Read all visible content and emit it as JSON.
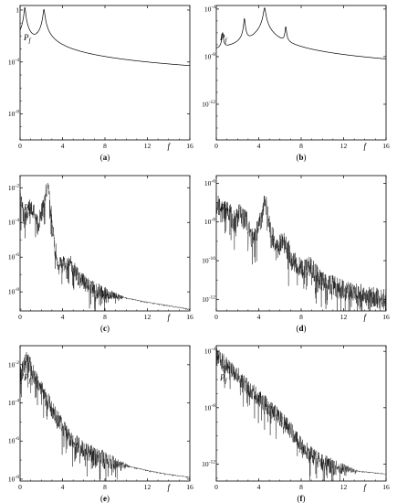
{
  "chart_data": [
    {
      "type": "line",
      "panel": "a",
      "caption": {
        "open": "(",
        "letter": "a",
        "close": ")"
      },
      "ylabel": {
        "main": "P",
        "sub": "f"
      },
      "xlabel": "f",
      "yscale": "log",
      "xlim": [
        0,
        16
      ],
      "ylim_exp": [
        -10,
        0.35
      ],
      "xticks": [
        "0",
        "4",
        "8",
        "12",
        "16"
      ],
      "yticks": [
        {
          "base": "1",
          "exp": "",
          "value": 0
        },
        {
          "base": "10",
          "exp": "-4",
          "value": -4
        },
        {
          "base": "10",
          "exp": "-8",
          "value": -8
        }
      ],
      "series": [
        {
          "baseline": [
            [
              0.05,
              -6.2
            ],
            [
              0.3,
              -7.3
            ],
            [
              1,
              -7.9
            ],
            [
              2,
              -8.3
            ],
            [
              4,
              -8.8
            ],
            [
              8,
              -9.4
            ],
            [
              12,
              -9.8
            ],
            [
              16,
              -10.1
            ]
          ],
          "noise": 0,
          "peaks": [
            {
              "f": 0.45,
              "top": 0.2,
              "w": 0.06
            },
            {
              "f": 1.6,
              "top": -2.9,
              "w": 0.03
            },
            {
              "f": 2.25,
              "top": 0.05,
              "w": 0.07
            },
            {
              "f": 3.45,
              "top": -5.2,
              "w": 0.02
            },
            {
              "f": 4.1,
              "top": -4.2,
              "w": 0.03
            },
            {
              "f": 5.5,
              "top": -6.5,
              "w": 0.02
            },
            {
              "f": 6.35,
              "top": -5.8,
              "w": 0.02
            },
            {
              "f": 8.25,
              "top": -7.3,
              "w": 0.015
            },
            {
              "f": 10.3,
              "top": -8.9,
              "w": 0.01
            }
          ]
        }
      ]
    },
    {
      "type": "line",
      "panel": "b",
      "caption": {
        "open": "(",
        "letter": "b",
        "close": ")"
      },
      "ylabel": {
        "main": "P",
        "sub": "f"
      },
      "xlabel": "f",
      "yscale": "log",
      "xlim": [
        0,
        16
      ],
      "ylim_exp": [
        -15,
        -3.7
      ],
      "xticks": [
        "0",
        "4",
        "8",
        "12",
        "16"
      ],
      "yticks": [
        {
          "base": "10",
          "exp": "-4",
          "value": -4
        },
        {
          "base": "10",
          "exp": "-8",
          "value": -8
        },
        {
          "base": "10",
          "exp": "-12",
          "value": -12
        }
      ],
      "series": [
        {
          "baseline": [
            [
              0.05,
              -9.0
            ],
            [
              0.6,
              -10.4
            ],
            [
              1.2,
              -11.8
            ],
            [
              1.6,
              -11.4
            ],
            [
              2.0,
              -12.0
            ],
            [
              2.6,
              -11.2
            ],
            [
              3.0,
              -13.2
            ],
            [
              3.5,
              -11.4
            ],
            [
              4.55,
              -7.5
            ],
            [
              5.6,
              -11.8
            ],
            [
              5.9,
              -12.9
            ],
            [
              6.4,
              -12.0
            ],
            [
              7.5,
              -13.0
            ],
            [
              8.4,
              -12.6
            ],
            [
              9.2,
              -13.2
            ],
            [
              10.5,
              -13.4
            ],
            [
              12,
              -13.7
            ],
            [
              14,
              -13.9
            ],
            [
              16,
              -14.1
            ]
          ],
          "noise": 0,
          "peaks": [
            {
              "f": 0.6,
              "top": -6.0,
              "w": 0.05
            },
            {
              "f": 1.3,
              "top": -8.0,
              "w": 0.02
            },
            {
              "f": 2.65,
              "top": -4.8,
              "w": 0.05
            },
            {
              "f": 3.7,
              "top": -7.6,
              "w": 0.03
            },
            {
              "f": 4.55,
              "top": -3.9,
              "w": 0.08
            },
            {
              "f": 5.6,
              "top": -7.8,
              "w": 0.03
            },
            {
              "f": 6.55,
              "top": -5.5,
              "w": 0.05
            },
            {
              "f": 8.6,
              "top": -9.0,
              "w": 0.02
            },
            {
              "f": 10.7,
              "top": -9.8,
              "w": 0.015
            },
            {
              "f": 12.55,
              "top": -11.3,
              "w": 0.01
            },
            {
              "f": 14.2,
              "top": -12.8,
              "w": 0.01
            }
          ]
        }
      ]
    },
    {
      "type": "line",
      "panel": "c",
      "caption": {
        "open": "(",
        "letter": "c",
        "close": ")"
      },
      "ylabel": {
        "main": "P",
        "sub": "f"
      },
      "xlabel": "f",
      "yscale": "log",
      "xlim": [
        0,
        16
      ],
      "ylim_exp": [
        -9.1,
        -1.3
      ],
      "xticks": [
        "0",
        "4",
        "8",
        "12",
        "16"
      ],
      "yticks": [
        {
          "base": "10",
          "exp": "-2",
          "value": -2
        },
        {
          "base": "10",
          "exp": "-4",
          "value": -4
        },
        {
          "base": "10",
          "exp": "-6",
          "value": -6
        },
        {
          "base": "10",
          "exp": "-8",
          "value": -8
        }
      ],
      "series": [
        {
          "baseline": [
            [
              0,
              -2.4
            ],
            [
              0.4,
              -3.9
            ],
            [
              0.9,
              -3.1
            ],
            [
              1.3,
              -3.3
            ],
            [
              1.7,
              -4.1
            ],
            [
              2.3,
              -2.8
            ],
            [
              2.6,
              -1.7
            ],
            [
              3.0,
              -3.9
            ],
            [
              3.5,
              -6.3
            ],
            [
              4.3,
              -6.5
            ],
            [
              4.8,
              -6.4
            ],
            [
              5.6,
              -7.3
            ],
            [
              6.4,
              -7.6
            ],
            [
              7.0,
              -7.9
            ],
            [
              8,
              -8.1
            ],
            [
              10,
              -8.35
            ],
            [
              12,
              -8.6
            ],
            [
              14,
              -8.8
            ],
            [
              16,
              -9.0
            ]
          ],
          "noise": 0.9,
          "noiseUntil": 7.5,
          "peaks": []
        }
      ]
    },
    {
      "type": "line",
      "panel": "d",
      "caption": {
        "open": "(",
        "letter": "d",
        "close": ")"
      },
      "ylabel": {
        "main": "P",
        "sub": "f"
      },
      "xlabel": "f",
      "yscale": "log",
      "xlim": [
        0,
        16
      ],
      "ylim_exp": [
        -12.6,
        -5.6
      ],
      "xticks": [
        "0",
        "4",
        "8",
        "12",
        "16"
      ],
      "yticks": [
        {
          "base": "10",
          "exp": "-6",
          "value": -6
        },
        {
          "base": "10",
          "exp": "-8",
          "value": -8
        },
        {
          "base": "10",
          "exp": "-10",
          "value": -10
        },
        {
          "base": "10",
          "exp": "-12",
          "value": -12
        }
      ],
      "series": [
        {
          "baseline": [
            [
              0,
              -7.0
            ],
            [
              0.6,
              -7.5
            ],
            [
              1.1,
              -7.3
            ],
            [
              1.6,
              -8.0
            ],
            [
              2.2,
              -7.6
            ],
            [
              2.8,
              -7.9
            ],
            [
              3.4,
              -8.9
            ],
            [
              4.0,
              -8.3
            ],
            [
              4.6,
              -6.9
            ],
            [
              5.1,
              -8.4
            ],
            [
              5.7,
              -9.4
            ],
            [
              6.4,
              -8.9
            ],
            [
              7.2,
              -10.0
            ],
            [
              8.0,
              -10.4
            ],
            [
              8.8,
              -10.3
            ],
            [
              10,
              -11.1
            ],
            [
              12,
              -11.5
            ],
            [
              14,
              -11.8
            ],
            [
              16,
              -12.0
            ]
          ],
          "noise": 1.0,
          "noiseUntil": 16,
          "peaks": []
        }
      ]
    },
    {
      "type": "line",
      "panel": "e",
      "caption": {
        "open": "(",
        "letter": "e",
        "close": ")"
      },
      "ylabel": {
        "main": "P",
        "sub": "f"
      },
      "xlabel": "f",
      "yscale": "log",
      "xlim": [
        0,
        16
      ],
      "ylim_exp": [
        -8.1,
        -1.0
      ],
      "xticks": [
        "0",
        "4",
        "8",
        "12",
        "16"
      ],
      "yticks": [
        {
          "base": "10",
          "exp": "-2",
          "value": -2
        },
        {
          "base": "10",
          "exp": "-4",
          "value": -4
        },
        {
          "base": "10",
          "exp": "-6",
          "value": -6
        },
        {
          "base": "10",
          "exp": "-8",
          "value": -8
        }
      ],
      "series": [
        {
          "baseline": [
            [
              0,
              -2.6
            ],
            [
              0.7,
              -1.6
            ],
            [
              1.2,
              -2.4
            ],
            [
              2.0,
              -3.3
            ],
            [
              3.0,
              -4.3
            ],
            [
              4.0,
              -5.3
            ],
            [
              5.0,
              -6.0
            ],
            [
              6.0,
              -6.5
            ],
            [
              7.0,
              -6.8
            ],
            [
              8,
              -7.0
            ],
            [
              10,
              -7.3
            ],
            [
              12,
              -7.55
            ],
            [
              14,
              -7.75
            ],
            [
              16,
              -7.9
            ]
          ],
          "noise": 0.9,
          "noiseUntil": 8,
          "peaks": []
        }
      ]
    },
    {
      "type": "line",
      "panel": "f",
      "caption": {
        "open": "(",
        "letter": "f",
        "close": ")"
      },
      "ylabel": {
        "main": "P",
        "sub": "f"
      },
      "xlabel": "f",
      "yscale": "log",
      "xlim": [
        0,
        16
      ],
      "ylim_exp": [
        -13.2,
        -3.6
      ],
      "xticks": [
        "0",
        "4",
        "8",
        "12",
        "16"
      ],
      "yticks": [
        {
          "base": "10",
          "exp": "-4",
          "value": -4
        },
        {
          "base": "10",
          "exp": "-8",
          "value": -8
        },
        {
          "base": "10",
          "exp": "-12",
          "value": -12
        }
      ],
      "series": [
        {
          "baseline": [
            [
              0,
              -4.3
            ],
            [
              1,
              -5.0
            ],
            [
              2,
              -5.7
            ],
            [
              3,
              -6.6
            ],
            [
              4,
              -7.3
            ],
            [
              5,
              -8.0
            ],
            [
              6,
              -8.7
            ],
            [
              7,
              -9.6
            ],
            [
              8,
              -10.7
            ],
            [
              9,
              -11.4
            ],
            [
              10,
              -11.9
            ],
            [
              11,
              -12.2
            ],
            [
              12,
              -12.35
            ],
            [
              14,
              -12.55
            ],
            [
              16,
              -12.7
            ]
          ],
          "noise": 1.1,
          "noiseUntil": 11,
          "peaks": []
        }
      ]
    }
  ]
}
